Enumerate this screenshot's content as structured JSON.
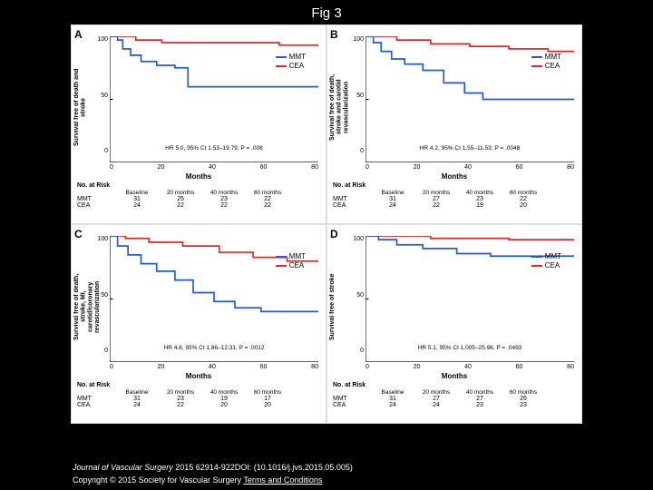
{
  "title": "Fig 3",
  "colors": {
    "mmt": "#2159d6",
    "cea": "#e02828",
    "axis": "#000000",
    "bg": "#ffffff"
  },
  "x_axis": {
    "label": "Months",
    "min": 0,
    "max": 80,
    "ticks": [
      0,
      20,
      40,
      60,
      80
    ]
  },
  "y_axis": {
    "min": 0,
    "max": 100,
    "ticks_major": [
      0,
      50,
      100
    ],
    "label_100": "100",
    "label_50": "50",
    "label_0": "0"
  },
  "legend": {
    "series1": "MMT",
    "series2": "CEA"
  },
  "panels": [
    {
      "letter": "A",
      "y_label": "Survival free of death and stroke",
      "hr_text": "HR 5.0, 95% CI 1.53–19.79; P = .008",
      "series": {
        "mmt": [
          [
            0,
            100
          ],
          [
            3,
            97
          ],
          [
            5,
            90
          ],
          [
            8,
            85
          ],
          [
            12,
            80
          ],
          [
            18,
            77
          ],
          [
            25,
            75
          ],
          [
            30,
            60
          ],
          [
            40,
            60
          ],
          [
            55,
            60
          ],
          [
            70,
            60
          ],
          [
            80,
            60
          ]
        ],
        "cea": [
          [
            0,
            100
          ],
          [
            4,
            100
          ],
          [
            10,
            97
          ],
          [
            20,
            95
          ],
          [
            35,
            95
          ],
          [
            50,
            95
          ],
          [
            65,
            93
          ],
          [
            80,
            93
          ]
        ]
      },
      "risk": {
        "header": "No. at Risk",
        "cols": [
          "Baseline",
          "20 months",
          "40 months",
          "60 months"
        ],
        "rows": [
          {
            "label": "MMT",
            "vals": [
              31,
              25,
              23,
              22
            ]
          },
          {
            "label": "CEA",
            "vals": [
              24,
              22,
              22,
              22
            ]
          }
        ]
      }
    },
    {
      "letter": "B",
      "y_label": "Survival free of death, stroke and carotid revascularization",
      "hr_text": "HR 4.2, 95% CI 1.55–11.53; P = .0048",
      "series": {
        "mmt": [
          [
            0,
            100
          ],
          [
            3,
            95
          ],
          [
            6,
            88
          ],
          [
            10,
            82
          ],
          [
            15,
            78
          ],
          [
            22,
            73
          ],
          [
            30,
            63
          ],
          [
            38,
            55
          ],
          [
            45,
            50
          ],
          [
            55,
            50
          ],
          [
            70,
            50
          ],
          [
            80,
            50
          ]
        ],
        "cea": [
          [
            0,
            100
          ],
          [
            5,
            100
          ],
          [
            12,
            97
          ],
          [
            25,
            94
          ],
          [
            40,
            92
          ],
          [
            55,
            90
          ],
          [
            70,
            88
          ],
          [
            80,
            88
          ]
        ]
      },
      "risk": {
        "header": "No. at Risk",
        "cols": [
          "Baseline",
          "20 months",
          "40 months",
          "60 months"
        ],
        "rows": [
          {
            "label": "MMT",
            "vals": [
              31,
              27,
              23,
              22
            ]
          },
          {
            "label": "CEA",
            "vals": [
              24,
              22,
              19,
              20
            ]
          }
        ]
      }
    },
    {
      "letter": "C",
      "y_label": "Survival free of death, stroke, MI, carotid/coronary revascularization",
      "hr_text": "HR 4.8, 95% CI 1.86–12.31; P = .0012",
      "series": {
        "mmt": [
          [
            0,
            100
          ],
          [
            3,
            92
          ],
          [
            7,
            85
          ],
          [
            12,
            78
          ],
          [
            18,
            72
          ],
          [
            25,
            65
          ],
          [
            32,
            55
          ],
          [
            40,
            48
          ],
          [
            48,
            43
          ],
          [
            58,
            40
          ],
          [
            70,
            40
          ],
          [
            80,
            40
          ]
        ],
        "cea": [
          [
            0,
            100
          ],
          [
            6,
            98
          ],
          [
            15,
            95
          ],
          [
            28,
            92
          ],
          [
            42,
            87
          ],
          [
            55,
            83
          ],
          [
            68,
            80
          ],
          [
            80,
            80
          ]
        ]
      },
      "risk": {
        "header": "No. at Risk",
        "cols": [
          "Baseline",
          "20 months",
          "40 months",
          "60 months"
        ],
        "rows": [
          {
            "label": "MMT",
            "vals": [
              31,
              23,
              19,
              17
            ]
          },
          {
            "label": "CEA",
            "vals": [
              24,
              22,
              20,
              20
            ]
          }
        ]
      }
    },
    {
      "letter": "D",
      "y_label": "Survival free of stroke",
      "hr_text": "HR 5.1, 95% CI 1.005–25.96; P = .0493",
      "series": {
        "mmt": [
          [
            0,
            100
          ],
          [
            5,
            97
          ],
          [
            12,
            93
          ],
          [
            22,
            90
          ],
          [
            35,
            86
          ],
          [
            48,
            84
          ],
          [
            62,
            84
          ],
          [
            80,
            84
          ]
        ],
        "cea": [
          [
            0,
            100
          ],
          [
            10,
            100
          ],
          [
            25,
            98
          ],
          [
            40,
            98
          ],
          [
            55,
            97
          ],
          [
            70,
            97
          ],
          [
            80,
            97
          ]
        ]
      },
      "risk": {
        "header": "No. at Risk",
        "cols": [
          "Baseline",
          "20 months",
          "40 months",
          "60 months"
        ],
        "rows": [
          {
            "label": "MMT",
            "vals": [
              31,
              27,
              27,
              26
            ]
          },
          {
            "label": "CEA",
            "vals": [
              24,
              24,
              23,
              23
            ]
          }
        ]
      }
    }
  ],
  "citation": {
    "journal": "Journal of Vascular Surgery",
    "rest": " 2015 62914-922DOI: (10.1016/j.jvs.2015.05.005)"
  },
  "copyright": {
    "prefix": "Copyright © 2015 Society for Vascular Surgery ",
    "link": "Terms and Conditions"
  }
}
